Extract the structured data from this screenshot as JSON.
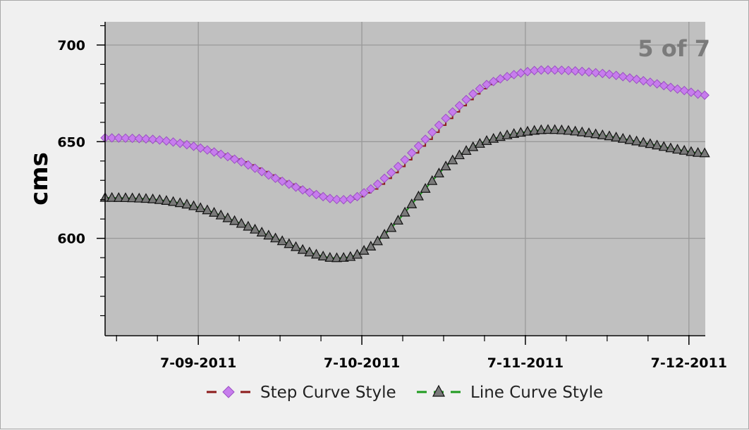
{
  "page_indicator": "5 of 7",
  "colors": {
    "plot_background": "#c0c0c0",
    "grid": "#999999",
    "step_line": "#8b1a1a",
    "step_marker": "#c77ded",
    "line_line": "#1e9a1e",
    "line_marker": "#7a7a7a"
  },
  "chart_data": {
    "type": "line",
    "title": "",
    "xlabel": "",
    "ylabel": "cms",
    "x_tick_labels": [
      "7-09-2011",
      "7-10-2011",
      "7-11-2011",
      "7-12-2011"
    ],
    "x_range_days": [
      -0.57,
      3.1
    ],
    "ylim": [
      550,
      712
    ],
    "y_tick_labels": [
      "700",
      "650",
      "600"
    ],
    "y_ticks": [
      700,
      650,
      600
    ],
    "grid": true,
    "legend_position": "bottom",
    "series": [
      {
        "name": "Step Curve Style",
        "style": "step",
        "marker": "diamond",
        "points": [
          [
            -0.57,
            652
          ],
          [
            -0.25,
            651
          ],
          [
            0,
            647
          ],
          [
            0.25,
            640
          ],
          [
            0.5,
            630
          ],
          [
            0.75,
            622
          ],
          [
            0.9,
            620
          ],
          [
            1.0,
            623
          ],
          [
            1.15,
            632
          ],
          [
            1.35,
            648
          ],
          [
            1.55,
            665
          ],
          [
            1.75,
            679
          ],
          [
            2.0,
            686
          ],
          [
            2.2,
            687
          ],
          [
            2.5,
            685
          ],
          [
            2.75,
            681
          ],
          [
            3.0,
            676
          ],
          [
            3.1,
            674
          ]
        ]
      },
      {
        "name": "Line Curve Style",
        "style": "line",
        "marker": "triangle",
        "points": [
          [
            -0.57,
            621
          ],
          [
            -0.25,
            620
          ],
          [
            0,
            616
          ],
          [
            0.25,
            608
          ],
          [
            0.5,
            599
          ],
          [
            0.75,
            591
          ],
          [
            0.9,
            590
          ],
          [
            1.0,
            593
          ],
          [
            1.15,
            603
          ],
          [
            1.35,
            622
          ],
          [
            1.55,
            640
          ],
          [
            1.75,
            650
          ],
          [
            2.0,
            655
          ],
          [
            2.2,
            656
          ],
          [
            2.5,
            653
          ],
          [
            2.75,
            649
          ],
          [
            3.0,
            645
          ],
          [
            3.1,
            644
          ]
        ]
      }
    ]
  }
}
